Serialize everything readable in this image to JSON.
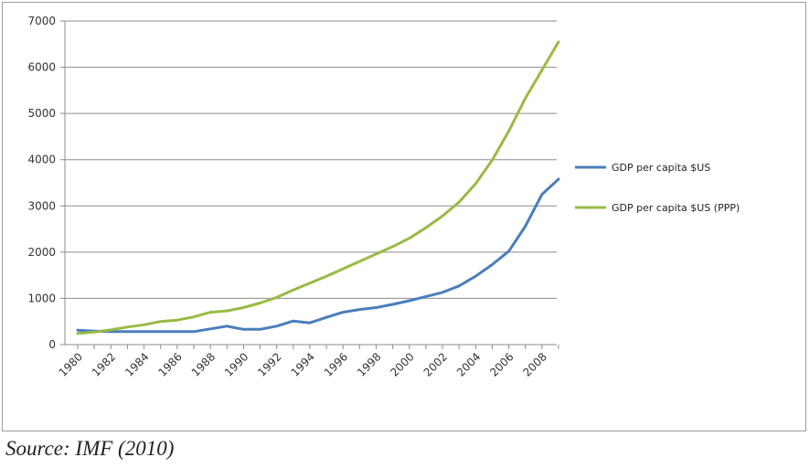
{
  "chart_data": {
    "type": "line",
    "title": "",
    "xlabel": "",
    "ylabel": "",
    "ylim": [
      0,
      7000
    ],
    "yticks": [
      0,
      1000,
      2000,
      3000,
      4000,
      5000,
      6000,
      7000
    ],
    "xticks": [
      1980,
      1982,
      1984,
      1986,
      1988,
      1990,
      1992,
      1994,
      1996,
      1998,
      2000,
      2002,
      2004,
      2006,
      2008
    ],
    "x": [
      1980,
      1981,
      1982,
      1983,
      1984,
      1985,
      1986,
      1987,
      1988,
      1989,
      1990,
      1991,
      1992,
      1993,
      1994,
      1995,
      1996,
      1997,
      1998,
      1999,
      2000,
      2001,
      2002,
      2003,
      2004,
      2005,
      2006,
      2007,
      2008,
      2009
    ],
    "grid": "horizontal",
    "legend_position": "right",
    "series": [
      {
        "name": "GDP per capita $US",
        "color": "#4a7ebb",
        "values": [
          310,
          290,
          280,
          280,
          280,
          280,
          280,
          280,
          340,
          400,
          330,
          330,
          400,
          510,
          470,
          590,
          700,
          760,
          800,
          870,
          950,
          1040,
          1130,
          1270,
          1480,
          1730,
          2020,
          2560,
          3250,
          3580
        ]
      },
      {
        "name": "GDP per capita $US (PPP)",
        "color": "#98bb45",
        "values": [
          240,
          270,
          320,
          380,
          430,
          500,
          530,
          600,
          700,
          730,
          800,
          900,
          1020,
          1180,
          1330,
          1480,
          1640,
          1800,
          1960,
          2120,
          2300,
          2530,
          2780,
          3080,
          3480,
          3990,
          4620,
          5330,
          5940,
          6550
        ]
      }
    ]
  },
  "legend": {
    "items": [
      {
        "label": "GDP per capita $US",
        "color": "#4a7ebb"
      },
      {
        "label": "GDP per capita $US (PPP)",
        "color": "#98bb45"
      }
    ]
  },
  "source": "Source: IMF (2010)"
}
